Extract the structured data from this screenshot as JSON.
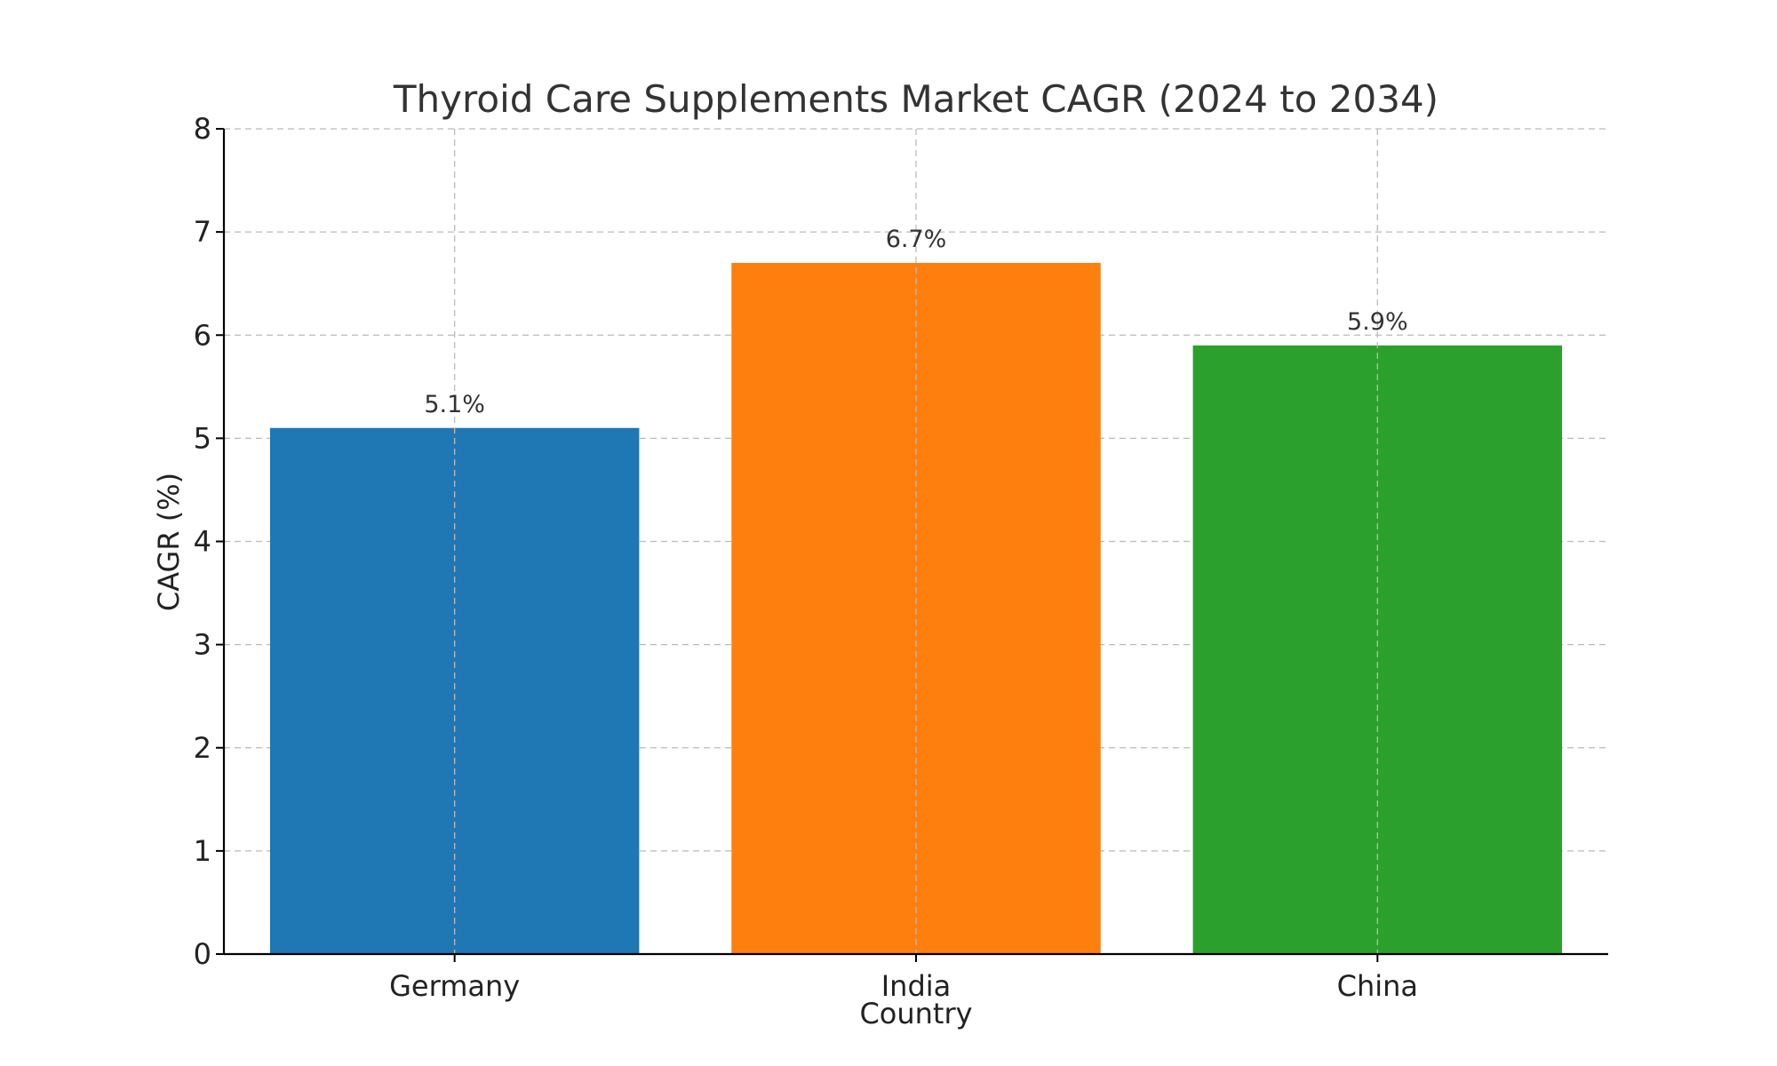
{
  "chart_data": {
    "type": "bar",
    "title": "Thyroid Care Supplements Market CAGR (2024 to 2034)",
    "xlabel": "Country",
    "ylabel": "CAGR (%)",
    "categories": [
      "Germany",
      "India",
      "China"
    ],
    "values": [
      5.1,
      6.7,
      5.9
    ],
    "data_labels": [
      "5.1%",
      "6.7%",
      "5.9%"
    ],
    "colors": [
      "#1f77b4",
      "#ff7f0e",
      "#2ca02c"
    ],
    "ylim": [
      0,
      8
    ],
    "yticks": [
      0,
      1,
      2,
      3,
      4,
      5,
      6,
      7,
      8
    ],
    "grid": true
  }
}
